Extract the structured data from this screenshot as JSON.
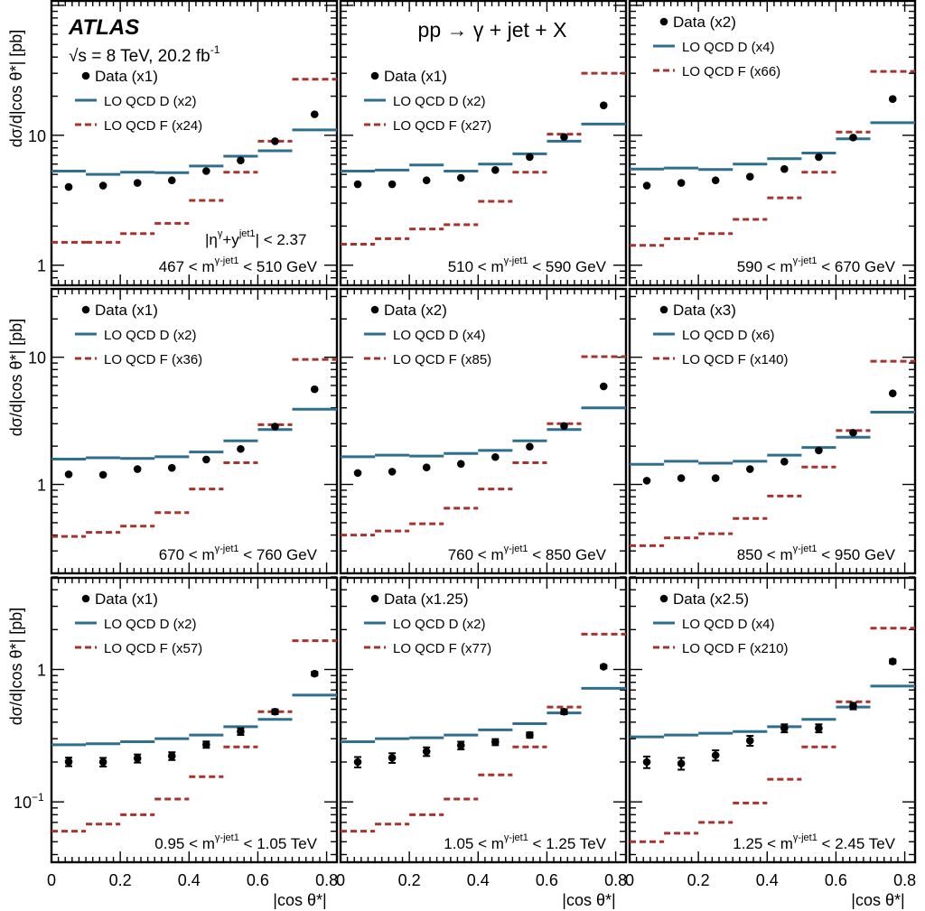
{
  "experiment": "ATLAS",
  "energy_label": "√s = 8 TeV, 20.2 fb",
  "energy_sup": "-1",
  "process": "pp → γ + jet + X",
  "y_axis_label": "dσ/d|cos θ*| [pb]",
  "x_axis_label": "|cos θ*|",
  "x_tick_labels": [
    "0",
    "0.2",
    "0.4",
    "0.6",
    "0.8"
  ],
  "y_tick_labels": {
    "1": "1",
    "10": "10",
    "0.1": "10",
    "0.1_sup": "−1"
  },
  "rapidity_cut": "|η",
  "rapidity_cut_parts": [
    "|η",
    "γ",
    "+y",
    "jet1",
    "| < 2.37"
  ],
  "colors": {
    "data": "#000000",
    "qcd_d": "#2e6e8e",
    "qcd_f": "#a8322d"
  },
  "chart_data": {
    "type": "scatter",
    "layout": "3x3 grid",
    "x_bin_edges": [
      0,
      0.1,
      0.2,
      0.3,
      0.4,
      0.5,
      0.6,
      0.7,
      0.83
    ],
    "x_points": [
      0.05,
      0.15,
      0.25,
      0.35,
      0.45,
      0.55,
      0.65,
      0.765
    ],
    "xlim": [
      0,
      0.83
    ],
    "yscale": "log",
    "legend_placement": "top-left",
    "panels": [
      {
        "mass_pre": "467 < m",
        "mass_sup": "γ-jet1",
        "mass_post": " < 510 GeV",
        "ylim": [
          0.7,
          110
        ],
        "data_label": "Data (x1)",
        "qcd_d_label": "LO QCD D (x2)",
        "qcd_f_label": "LO QCD F (x24)",
        "data": [
          4.0,
          4.1,
          4.3,
          4.5,
          5.3,
          6.4,
          9.0,
          14.5
        ],
        "qcd_d": [
          5.3,
          5.0,
          5.2,
          5.15,
          5.8,
          6.9,
          7.6,
          11.0
        ],
        "qcd_f": [
          1.5,
          1.5,
          1.75,
          2.1,
          3.15,
          5.2,
          9.0,
          27.0
        ]
      },
      {
        "mass_pre": "510 < m",
        "mass_sup": "γ-jet1",
        "mass_post": " < 590 GeV",
        "ylim": [
          0.7,
          110
        ],
        "data_label": "Data (x1)",
        "qcd_d_label": "LO QCD D (x2)",
        "qcd_f_label": "LO QCD F (x27)",
        "data": [
          4.2,
          4.2,
          4.5,
          4.7,
          5.4,
          6.8,
          9.7,
          17.0
        ],
        "qcd_d": [
          5.3,
          5.4,
          5.9,
          5.3,
          6.0,
          7.2,
          9.0,
          12.2
        ],
        "qcd_f": [
          1.45,
          1.6,
          1.9,
          2.05,
          3.1,
          5.2,
          10.2,
          30.0
        ]
      },
      {
        "mass_pre": "590 < m",
        "mass_sup": "γ-jet1",
        "mass_post": " < 670 GeV",
        "ylim": [
          0.7,
          110
        ],
        "data_label": "Data (x2)",
        "qcd_d_label": "LO QCD D (x4)",
        "qcd_f_label": "LO QCD F (x66)",
        "data": [
          4.1,
          4.3,
          4.5,
          4.8,
          5.5,
          6.8,
          9.6,
          19.0
        ],
        "qcd_d": [
          5.5,
          5.6,
          5.45,
          6.0,
          6.6,
          7.3,
          9.4,
          12.5
        ],
        "qcd_f": [
          1.42,
          1.6,
          1.75,
          2.25,
          3.3,
          5.2,
          10.6,
          31.0
        ]
      },
      {
        "mass_pre": "670 < m",
        "mass_sup": "γ-jet1",
        "mass_post": " < 760 GeV",
        "ylim": [
          0.2,
          35
        ],
        "data_label": "Data (x1)",
        "qcd_d_label": "LO QCD D (x2)",
        "qcd_f_label": "LO QCD F (x36)",
        "data": [
          1.2,
          1.19,
          1.32,
          1.35,
          1.57,
          1.9,
          2.85,
          5.6
        ],
        "qcd_d": [
          1.58,
          1.62,
          1.6,
          1.65,
          1.8,
          2.2,
          2.7,
          3.9
        ],
        "qcd_f": [
          0.39,
          0.42,
          0.47,
          0.6,
          0.92,
          1.48,
          2.95,
          9.6
        ]
      },
      {
        "mass_pre": "760 < m",
        "mass_sup": "γ-jet1",
        "mass_post": " < 850 GeV",
        "ylim": [
          0.2,
          35
        ],
        "data_label": "Data (x2)",
        "qcd_d_label": "LO QCD D (x4)",
        "qcd_f_label": "LO QCD F (x85)",
        "data": [
          1.23,
          1.26,
          1.36,
          1.45,
          1.64,
          1.98,
          2.88,
          5.9
        ],
        "qcd_d": [
          1.65,
          1.7,
          1.67,
          1.75,
          1.85,
          2.2,
          2.7,
          4.0
        ],
        "qcd_f": [
          0.4,
          0.43,
          0.49,
          0.65,
          0.92,
          1.48,
          3.0,
          10.1
        ]
      },
      {
        "mass_pre": "850 < m",
        "mass_sup": "γ-jet1",
        "mass_post": " < 950 GeV",
        "ylim": [
          0.2,
          35
        ],
        "data_label": "Data (x3)",
        "qcd_d_label": "LO QCD D (x6)",
        "qcd_f_label": "LO QCD F (x140)",
        "data": [
          1.07,
          1.12,
          1.12,
          1.32,
          1.51,
          1.85,
          2.55,
          5.2
        ],
        "qcd_d": [
          1.44,
          1.52,
          1.47,
          1.52,
          1.7,
          1.95,
          2.35,
          3.7
        ],
        "qcd_f": [
          0.33,
          0.38,
          0.41,
          0.54,
          0.81,
          1.37,
          2.65,
          9.3
        ]
      },
      {
        "mass_pre": "0.95 < m",
        "mass_sup": "γ-jet1",
        "mass_post": " < 1.05 TeV",
        "ylim": [
          0.035,
          5.0
        ],
        "data_label": "Data (x1)",
        "qcd_d_label": "LO QCD D (x2)",
        "qcd_f_label": "LO QCD F (x57)",
        "data": [
          0.201,
          0.2,
          0.213,
          0.222,
          0.271,
          0.34,
          0.48,
          0.93
        ],
        "data_err": [
          0.015,
          0.015,
          0.015,
          0.015,
          0.015,
          0.02,
          0.02,
          0.03
        ],
        "qcd_d": [
          0.27,
          0.275,
          0.285,
          0.3,
          0.32,
          0.37,
          0.42,
          0.64
        ],
        "qcd_f": [
          0.06,
          0.068,
          0.08,
          0.105,
          0.155,
          0.26,
          0.48,
          1.65
        ]
      },
      {
        "mass_pre": "1.05 < m",
        "mass_sup": "γ-jet1",
        "mass_post": " < 1.25 TeV",
        "ylim": [
          0.035,
          5.0
        ],
        "data_label": "Data (x1.25)",
        "qcd_d_label": "LO QCD D (x2)",
        "qcd_f_label": "LO QCD F (x77)",
        "data": [
          0.2,
          0.215,
          0.24,
          0.267,
          0.283,
          0.32,
          0.48,
          1.05
        ],
        "data_err": [
          0.018,
          0.018,
          0.018,
          0.018,
          0.015,
          0.015,
          0.02,
          0.03
        ],
        "qcd_d": [
          0.285,
          0.3,
          0.305,
          0.32,
          0.35,
          0.39,
          0.47,
          0.72
        ],
        "qcd_f": [
          0.06,
          0.068,
          0.08,
          0.105,
          0.16,
          0.26,
          0.52,
          1.85
        ]
      },
      {
        "mass_pre": "1.25 < m",
        "mass_sup": "γ-jet1",
        "mass_post": " < 2.45 TeV",
        "ylim": [
          0.035,
          5.0
        ],
        "data_label": "Data (x2.5)",
        "qcd_d_label": "LO QCD D (x4)",
        "qcd_f_label": "LO QCD F (x210)",
        "data": [
          0.2,
          0.195,
          0.225,
          0.29,
          0.36,
          0.36,
          0.53,
          1.15
        ],
        "data_err": [
          0.02,
          0.02,
          0.02,
          0.025,
          0.025,
          0.025,
          0.03,
          0.04
        ],
        "qcd_d": [
          0.31,
          0.32,
          0.33,
          0.34,
          0.37,
          0.42,
          0.52,
          0.75
        ],
        "qcd_f": [
          0.05,
          0.058,
          0.07,
          0.098,
          0.148,
          0.26,
          0.57,
          2.05
        ]
      }
    ]
  }
}
